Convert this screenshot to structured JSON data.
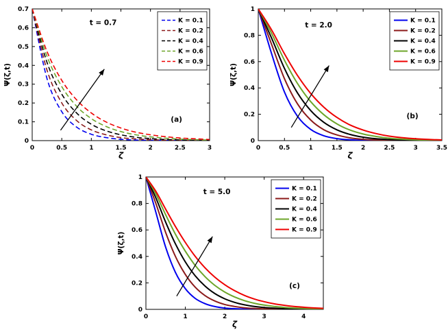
{
  "figure": {
    "background": "#ffffff",
    "series_colors": {
      "K = 0.1": "#0000EE",
      "K = 0.2": "#8B1A1A",
      "K = 0.4": "#000000",
      "K = 0.6": "#6CA529",
      "K = 0.9": "#EE0000"
    }
  },
  "chart_data": [
    {
      "id": "a",
      "type": "line",
      "line_style": "dashed",
      "time_label": "t = 0.7",
      "panel_label": "(a)",
      "xlabel": "ζ",
      "ylabel": "Ψ(ζ,t)",
      "xlim": [
        0,
        3
      ],
      "ylim": [
        0,
        0.7
      ],
      "xticks": [
        0,
        0.5,
        1,
        1.5,
        2,
        2.5,
        3
      ],
      "yticks": [
        0,
        0.1,
        0.2,
        0.3,
        0.4,
        0.5,
        0.6,
        0.7
      ],
      "legend_position": "top-right",
      "x": [
        0,
        0.25,
        0.5,
        0.75,
        1,
        1.25,
        1.5,
        1.75,
        2,
        2.25,
        2.5,
        2.75,
        3
      ],
      "series": [
        {
          "name": "K = 0.1",
          "color": "#0000EE",
          "values": [
            0.7,
            0.33,
            0.154,
            0.072,
            0.034,
            0.016,
            0.007,
            0.003,
            0.002,
            0.001,
            0,
            0,
            0
          ]
        },
        {
          "name": "K = 0.2",
          "color": "#8B1A1A",
          "values": [
            0.7,
            0.375,
            0.2,
            0.107,
            0.057,
            0.031,
            0.016,
            0.009,
            0.005,
            0.003,
            0.001,
            0.001,
            0
          ]
        },
        {
          "name": "K = 0.4",
          "color": "#000000",
          "values": [
            0.7,
            0.416,
            0.247,
            0.147,
            0.087,
            0.052,
            0.031,
            0.018,
            0.011,
            0.006,
            0.004,
            0.002,
            0.001
          ]
        },
        {
          "name": "K = 0.6",
          "color": "#6CA529",
          "values": [
            0.7,
            0.448,
            0.287,
            0.183,
            0.117,
            0.075,
            0.048,
            0.031,
            0.02,
            0.013,
            0.008,
            0.005,
            0.003
          ]
        },
        {
          "name": "K = 0.9",
          "color": "#EE0000",
          "values": [
            0.7,
            0.474,
            0.32,
            0.217,
            0.147,
            0.099,
            0.067,
            0.045,
            0.031,
            0.021,
            0.014,
            0.01,
            0.006
          ]
        }
      ],
      "annotations": {
        "time_at": [
          1.2,
          0.615
        ],
        "panel_at": [
          2.44,
          0.1
        ],
        "arrow": [
          [
            0.48,
            0.055
          ],
          [
            1.22,
            0.38
          ]
        ]
      }
    },
    {
      "id": "b",
      "type": "line",
      "line_style": "solid",
      "time_label": "t = 2.0",
      "panel_label": "(b)",
      "xlabel": "ζ",
      "ylabel": "Ψ(ζ,t)",
      "xlim": [
        0,
        3.5
      ],
      "ylim": [
        0,
        1
      ],
      "xticks": [
        0,
        0.5,
        1,
        1.5,
        2,
        2.5,
        3,
        3.5
      ],
      "yticks": [
        0,
        0.2,
        0.4,
        0.6,
        0.8,
        1
      ],
      "legend_position": "top-right",
      "x": [
        0,
        0.25,
        0.5,
        0.75,
        1,
        1.25,
        1.5,
        1.75,
        2,
        2.25,
        2.5,
        2.75,
        3,
        3.25,
        3.5
      ],
      "series": [
        {
          "name": "K = 0.1",
          "color": "#0000EE",
          "values": [
            1,
            0.666,
            0.368,
            0.184,
            0.085,
            0.037,
            0.015,
            0.006,
            0.002,
            0.001,
            0,
            0,
            0,
            0,
            0
          ]
        },
        {
          "name": "K = 0.2",
          "color": "#8B1A1A",
          "values": [
            1,
            0.736,
            0.47,
            0.278,
            0.156,
            0.083,
            0.043,
            0.021,
            0.01,
            0.005,
            0.002,
            0.001,
            0,
            0,
            0
          ]
        },
        {
          "name": "K = 0.4",
          "color": "#000000",
          "values": [
            1,
            0.783,
            0.548,
            0.361,
            0.228,
            0.139,
            0.082,
            0.047,
            0.026,
            0.014,
            0.008,
            0.004,
            0.002,
            0.001,
            0.001
          ]
        },
        {
          "name": "K = 0.6",
          "color": "#6CA529",
          "values": [
            1,
            0.818,
            0.61,
            0.433,
            0.296,
            0.197,
            0.127,
            0.08,
            0.05,
            0.031,
            0.018,
            0.011,
            0.006,
            0.004,
            0.002
          ]
        },
        {
          "name": "K = 0.9",
          "color": "#EE0000",
          "values": [
            1,
            0.844,
            0.659,
            0.494,
            0.358,
            0.254,
            0.176,
            0.119,
            0.08,
            0.053,
            0.034,
            0.022,
            0.014,
            0.009,
            0.005
          ]
        }
      ],
      "annotations": {
        "time_at": [
          1.15,
          0.86
        ],
        "panel_at": [
          2.94,
          0.17
        ],
        "arrow": [
          [
            0.63,
            0.1
          ],
          [
            1.35,
            0.57
          ]
        ]
      }
    },
    {
      "id": "c",
      "type": "line",
      "line_style": "solid",
      "time_label": "t = 5.0",
      "panel_label": "(c)",
      "xlabel": "ζ",
      "ylabel": "Ψ(ζ,t)",
      "xlim": [
        0,
        4.5
      ],
      "ylim": [
        0,
        1
      ],
      "xticks": [
        0,
        1,
        2,
        3,
        4
      ],
      "yticks": [
        0,
        0.2,
        0.4,
        0.6,
        0.8,
        1
      ],
      "legend_position": "top-right",
      "x": [
        0,
        0.25,
        0.5,
        0.75,
        1,
        1.25,
        1.5,
        1.75,
        2,
        2.25,
        2.5,
        2.75,
        3,
        3.25,
        3.5,
        3.75,
        4,
        4.25,
        4.5
      ],
      "series": [
        {
          "name": "K = 0.1",
          "color": "#0000EE",
          "values": [
            1,
            0.736,
            0.47,
            0.278,
            0.156,
            0.083,
            0.043,
            0.021,
            0.01,
            0.005,
            0.002,
            0.001,
            0.001,
            0,
            0,
            0,
            0,
            0,
            0
          ]
        },
        {
          "name": "K = 0.2",
          "color": "#8B1A1A",
          "values": [
            1,
            0.802,
            0.581,
            0.399,
            0.263,
            0.168,
            0.104,
            0.063,
            0.037,
            0.022,
            0.012,
            0.007,
            0.004,
            0.002,
            0.001,
            0.001,
            0,
            0,
            0
          ]
        },
        {
          "name": "K = 0.4",
          "color": "#000000",
          "values": [
            1,
            0.844,
            0.659,
            0.494,
            0.358,
            0.254,
            0.176,
            0.119,
            0.08,
            0.053,
            0.034,
            0.022,
            0.014,
            0.009,
            0.005,
            0.003,
            0.002,
            0.001,
            0.001
          ]
        },
        {
          "name": "K = 0.6",
          "color": "#6CA529",
          "values": [
            1,
            0.873,
            0.715,
            0.567,
            0.439,
            0.332,
            0.247,
            0.181,
            0.131,
            0.094,
            0.066,
            0.046,
            0.032,
            0.022,
            0.015,
            0.01,
            0.007,
            0.005,
            0.003
          ]
        },
        {
          "name": "K = 0.9",
          "color": "#EE0000",
          "values": [
            1,
            0.893,
            0.757,
            0.625,
            0.505,
            0.401,
            0.314,
            0.243,
            0.186,
            0.141,
            0.105,
            0.078,
            0.058,
            0.042,
            0.031,
            0.022,
            0.016,
            0.011,
            0.008
          ]
        }
      ],
      "annotations": {
        "time_at": [
          1.8,
          0.87
        ],
        "panel_at": [
          3.77,
          0.16
        ],
        "arrow": [
          [
            0.78,
            0.1
          ],
          [
            1.69,
            0.55
          ]
        ]
      }
    }
  ]
}
